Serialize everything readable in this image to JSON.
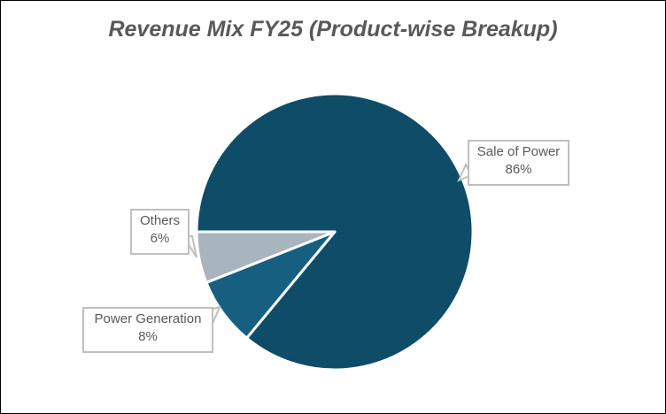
{
  "chart_data": {
    "type": "pie",
    "title": "Revenue Mix FY25 (Product-wise Breakup)",
    "categories": [
      "Sale of Power",
      "Power Generation",
      "Others"
    ],
    "values": [
      86,
      8,
      6
    ],
    "labels": [
      "86%",
      "8%",
      "6%"
    ],
    "colors": [
      "#0f4c68",
      "#175f80",
      "#a8b5bf"
    ],
    "start_angle_deg": 270,
    "direction": "clockwise",
    "legend": "none"
  }
}
